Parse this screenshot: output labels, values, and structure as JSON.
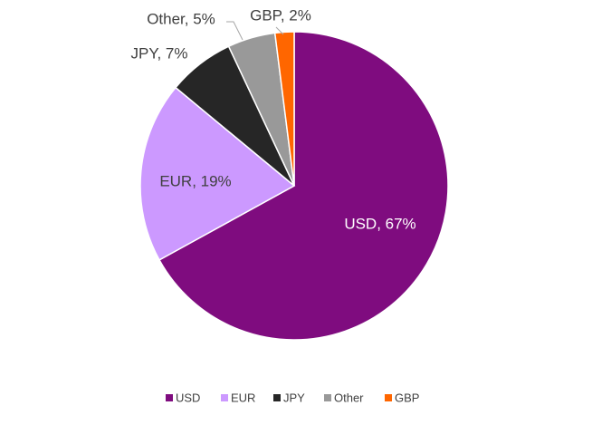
{
  "chart_data": {
    "type": "pie",
    "categories": [
      "USD",
      "EUR",
      "JPY",
      "Other",
      "GBP"
    ],
    "values": [
      67,
      19,
      7,
      5,
      2
    ],
    "value_labels": [
      "USD, 67%",
      "EUR, 19%",
      "JPY, 7%",
      "Other, 5%",
      "GBP, 2%"
    ],
    "colors": [
      "#7f0c7f",
      "#cc99ff",
      "#262626",
      "#999999",
      "#ff6600"
    ],
    "legend": "bottom"
  }
}
